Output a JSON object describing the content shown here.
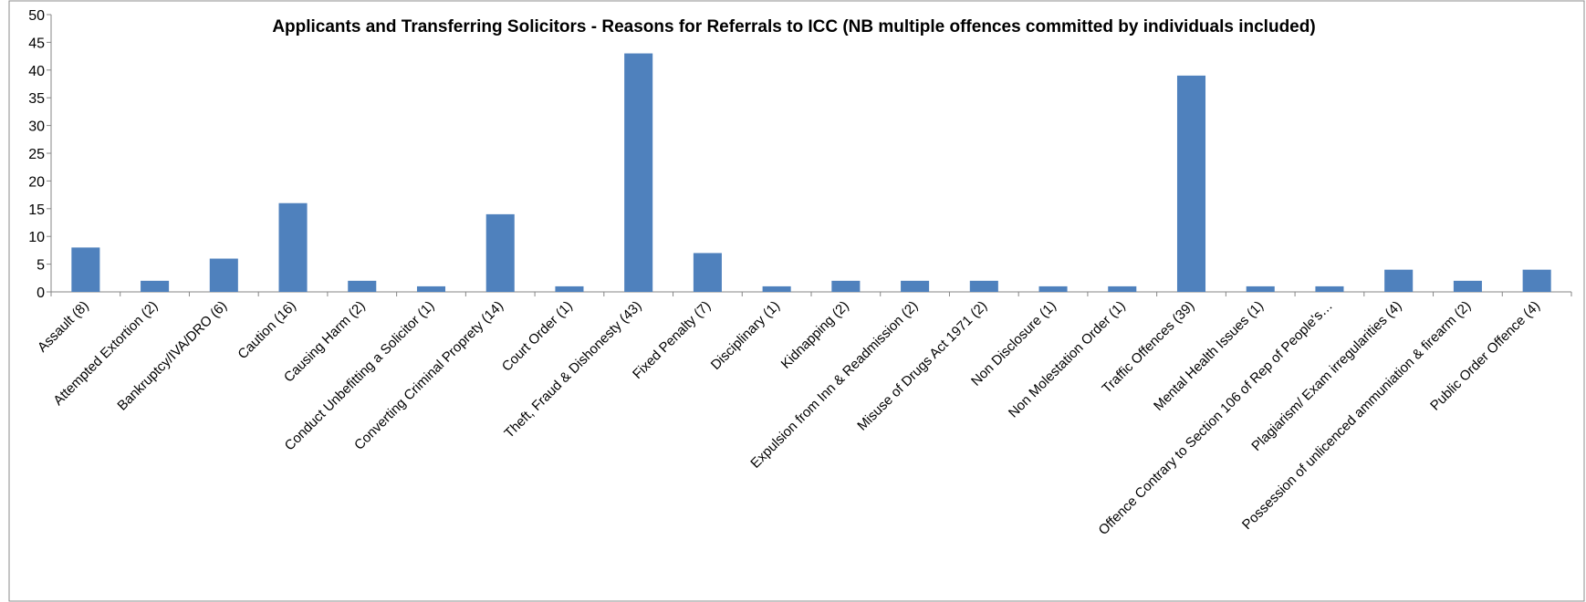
{
  "chart_data": {
    "type": "bar",
    "title": "Applicants and Transferring Solicitors - Reasons for Referrals to ICC (NB multiple offences committed by individuals included)",
    "xlabel": "",
    "ylabel": "",
    "ylim": [
      0,
      50
    ],
    "yticks": [
      0,
      5,
      10,
      15,
      20,
      25,
      30,
      35,
      40,
      45,
      50
    ],
    "grid": false,
    "legend": "none",
    "bar_color": "#4f81bd",
    "categories": [
      "Assault (8)",
      "Attempted Extortion (2)",
      "Bankruptcy/IVA/DRO (6)",
      "Caution (16)",
      "Causing Harm (2)",
      "Conduct Unbefitting a Solicitor (1)",
      "Converting Criminal Proprety (14)",
      "Court Order (1)",
      "Theft, Fraud & Dishonesty (43)",
      "Fixed Penalty (7)",
      "Disciplinary (1)",
      "Kidnapping (2)",
      "Expulsion from Inn & Readmission (2)",
      "Misuse of Drugs Act 1971 (2)",
      "Non Disclosure (1)",
      "Non Molestation Order (1)",
      "Traffic Offences (39)",
      "Mental Health Issues (1)",
      "Offence Contrary to Section 106 of Rep of People's…",
      "Plagiarism/ Exam irregularities (4)",
      "Possession of unlicenced ammuniation & firearm (2)",
      "Public Order Offence (4)"
    ],
    "values": [
      8,
      2,
      6,
      16,
      2,
      1,
      14,
      1,
      43,
      7,
      1,
      2,
      2,
      2,
      1,
      1,
      39,
      1,
      1,
      4,
      2,
      4
    ]
  }
}
